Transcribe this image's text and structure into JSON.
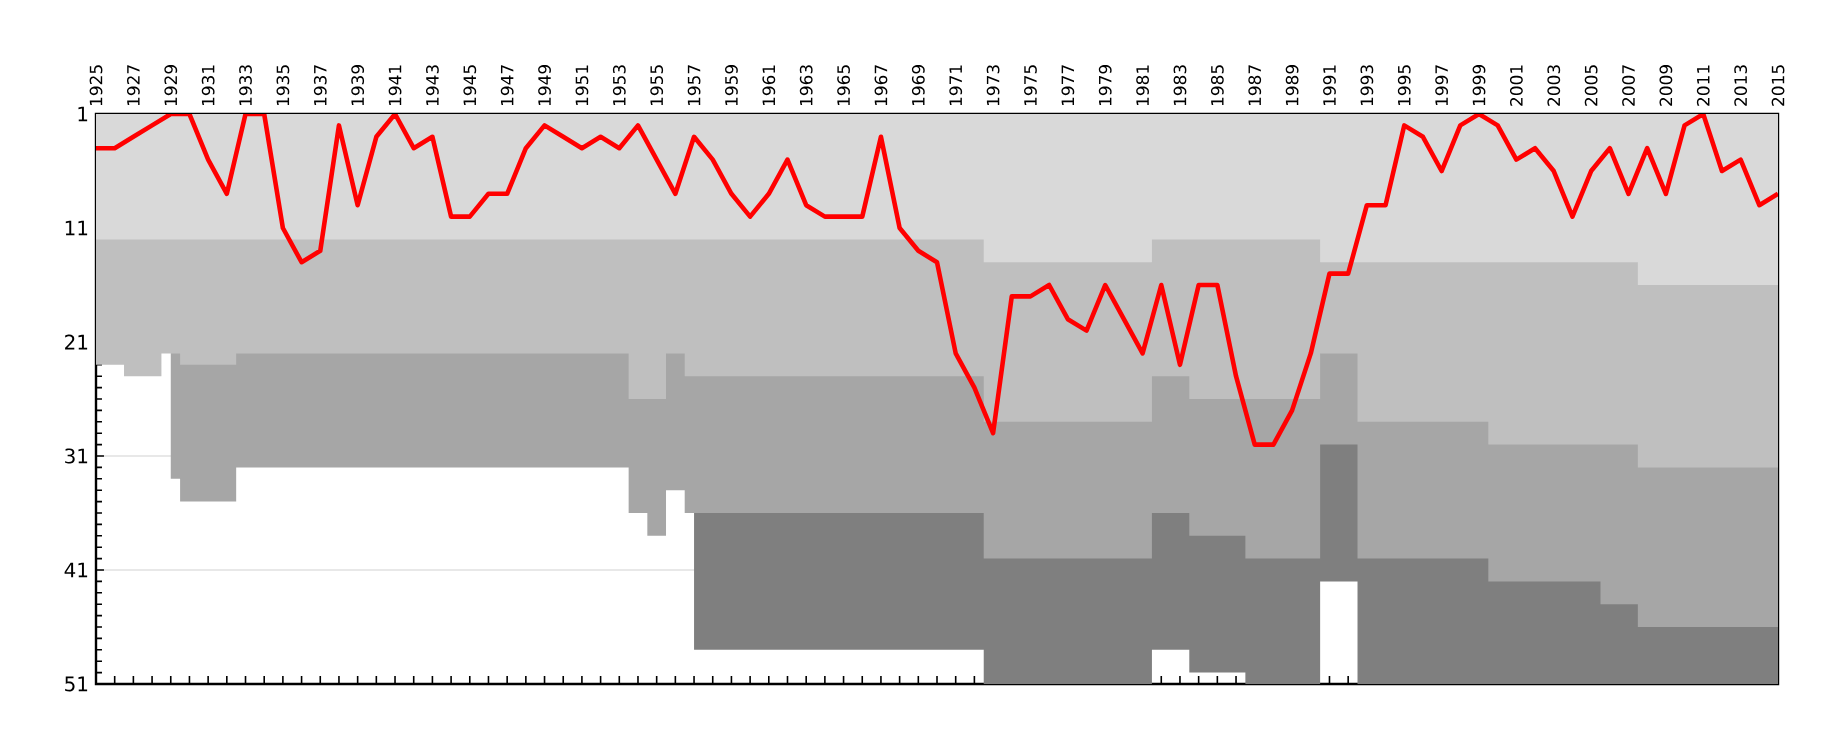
{
  "chart_data": {
    "type": "area",
    "categories": [
      "1925",
      null,
      "1927",
      null,
      "1929",
      null,
      "1931",
      null,
      "1933",
      null,
      "1935",
      null,
      "1937",
      null,
      "1939",
      null,
      "1941",
      null,
      "1943",
      null,
      "1945",
      null,
      "1947",
      null,
      "1949",
      null,
      "1951",
      null,
      "1953",
      null,
      "1955",
      null,
      "1957",
      null,
      "1959",
      null,
      "1961",
      null,
      "1963",
      null,
      "1965",
      null,
      "1967",
      null,
      "1969",
      null,
      "1971",
      null,
      "1973",
      null,
      "1975",
      null,
      "1977",
      null,
      "1979",
      null,
      "1981",
      null,
      "1983",
      null,
      "1985",
      null,
      "1987",
      null,
      "1989",
      null,
      "1991",
      null,
      "1993",
      null,
      "1995",
      null,
      "1997",
      null,
      "1999",
      null,
      "2001",
      null,
      "2003",
      null,
      "2005",
      null,
      "2007",
      null,
      "2009",
      null,
      "2011",
      null,
      "2013",
      null,
      "2015"
    ],
    "series": [
      {
        "color": "#7f7f7f",
        "values": [
          null,
          null,
          null,
          null,
          null,
          null,
          null,
          null,
          null,
          null,
          null,
          null,
          null,
          null,
          null,
          null,
          null,
          null,
          null,
          null,
          null,
          null,
          null,
          null,
          null,
          null,
          null,
          null,
          null,
          null,
          null,
          null,
          48,
          48,
          48,
          48,
          48,
          48,
          48,
          48,
          48,
          48,
          48,
          48,
          48,
          48,
          48,
          48,
          51,
          51,
          51,
          51,
          51,
          51,
          51,
          51,
          51,
          48,
          48,
          50,
          50,
          50,
          51,
          51,
          51,
          51,
          42,
          42,
          51,
          51,
          51,
          51,
          51,
          51,
          51,
          51,
          51,
          51,
          51,
          51,
          51,
          51,
          51,
          51,
          51,
          51,
          51,
          51,
          51,
          51,
          51
        ]
      },
      {
        "color": "#a6a6a6",
        "values": [
          null,
          null,
          null,
          null,
          33,
          35,
          35,
          35,
          32,
          32,
          32,
          32,
          32,
          32,
          32,
          32,
          32,
          32,
          32,
          32,
          32,
          32,
          32,
          32,
          32,
          32,
          32,
          32,
          32,
          36,
          38,
          34,
          36,
          36,
          36,
          36,
          36,
          36,
          36,
          36,
          36,
          36,
          36,
          36,
          36,
          36,
          36,
          36,
          40,
          40,
          40,
          40,
          40,
          40,
          40,
          40,
          40,
          36,
          36,
          38,
          38,
          38,
          40,
          40,
          40,
          40,
          30,
          30,
          40,
          40,
          40,
          40,
          40,
          40,
          40,
          42,
          42,
          42,
          42,
          42,
          42,
          44,
          44,
          46,
          46,
          46,
          46,
          46,
          46,
          46,
          46
        ]
      },
      {
        "color": "#bfbfbf",
        "values": [
          23,
          23,
          24,
          24,
          22,
          23,
          23,
          23,
          22,
          22,
          22,
          22,
          22,
          22,
          22,
          22,
          22,
          22,
          22,
          22,
          22,
          22,
          22,
          22,
          22,
          22,
          22,
          22,
          22,
          26,
          26,
          22,
          24,
          24,
          24,
          24,
          24,
          24,
          24,
          24,
          24,
          24,
          24,
          24,
          24,
          24,
          24,
          24,
          28,
          28,
          28,
          28,
          28,
          28,
          28,
          28,
          28,
          24,
          24,
          26,
          26,
          26,
          26,
          26,
          26,
          26,
          22,
          22,
          28,
          28,
          28,
          28,
          28,
          28,
          28,
          30,
          30,
          30,
          30,
          30,
          30,
          30,
          30,
          32,
          32,
          32,
          32,
          32,
          32,
          32,
          32
        ]
      },
      {
        "color": "#d9d9d9",
        "values": [
          12,
          12,
          12,
          12,
          12,
          12,
          12,
          12,
          12,
          12,
          12,
          12,
          12,
          12,
          12,
          12,
          12,
          12,
          12,
          12,
          12,
          12,
          12,
          12,
          12,
          12,
          12,
          12,
          12,
          12,
          12,
          12,
          12,
          12,
          12,
          12,
          12,
          12,
          12,
          12,
          12,
          12,
          12,
          12,
          12,
          12,
          12,
          12,
          14,
          14,
          14,
          14,
          14,
          14,
          14,
          14,
          14,
          12,
          12,
          12,
          12,
          12,
          12,
          12,
          12,
          12,
          14,
          14,
          14,
          14,
          14,
          14,
          14,
          14,
          14,
          14,
          14,
          14,
          14,
          14,
          14,
          14,
          14,
          16,
          16,
          16,
          16,
          16,
          16,
          16,
          16
        ]
      },
      {
        "type": "line",
        "color": "#ff0000",
        "values": [
          4,
          4,
          3,
          2,
          1,
          1,
          5,
          8,
          1,
          1,
          11,
          14,
          13,
          2,
          9,
          3,
          1,
          4,
          3,
          10,
          10,
          8,
          8,
          4,
          2,
          3,
          4,
          3,
          4,
          2,
          5,
          8,
          3,
          5,
          8,
          10,
          8,
          5,
          9,
          10,
          10,
          10,
          3,
          11,
          13,
          14,
          22,
          25,
          29,
          17,
          17,
          16,
          19,
          20,
          16,
          19,
          22,
          16,
          23,
          16,
          16,
          24,
          30,
          30,
          27,
          22,
          15,
          15,
          9,
          9,
          2,
          3,
          6,
          2,
          1,
          2,
          5,
          4,
          6,
          10,
          6,
          4,
          8,
          4,
          8,
          2,
          1,
          6,
          5,
          9,
          8
        ]
      }
    ],
    "ylim": [
      51,
      1
    ],
    "yticks": [
      1,
      11,
      21,
      31,
      41,
      51
    ],
    "grid": "y"
  }
}
